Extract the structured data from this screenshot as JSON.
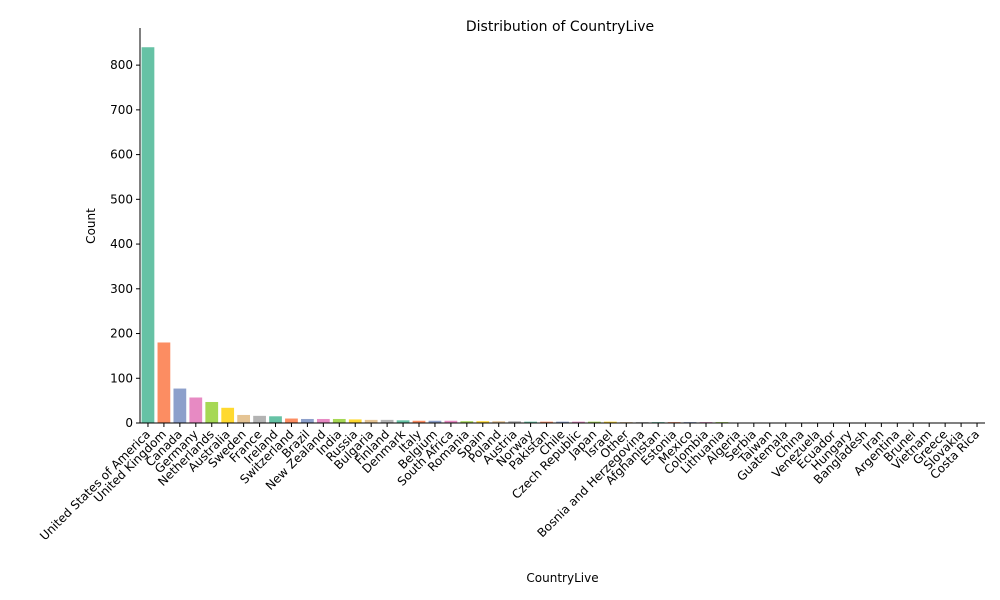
{
  "chart_data": {
    "type": "bar",
    "title": "Distribution of CountryLive",
    "xlabel": "CountryLive",
    "ylabel": "Count",
    "ylim": [
      0,
      883
    ],
    "yticks": [
      0,
      100,
      200,
      300,
      400,
      500,
      600,
      700,
      800
    ],
    "categories": [
      "United States of America",
      "United Kingdom",
      "Canada",
      "Germany",
      "Netherlands",
      "Australia",
      "Sweden",
      "France",
      "Ireland",
      "Switzerland",
      "Brazil",
      "New Zealand",
      "India",
      "Russia",
      "Bulgaria",
      "Finland",
      "Denmark",
      "Italy",
      "Belgium",
      "South Africa",
      "Romania",
      "Spain",
      "Poland",
      "Austria",
      "Norway",
      "Pakistan",
      "Chile",
      "Czech Republic",
      "Japan",
      "Israel",
      "Other",
      "Bosnia and Herzegovina",
      "Afghanistan",
      "Estonia",
      "Mexico",
      "Colombia",
      "Lithuania",
      "Algeria",
      "Serbia",
      "Taiwan",
      "Guatemala",
      "China",
      "Venezuela",
      "Ecuador",
      "Hungary",
      "Bangladesh",
      "Iran",
      "Argentina",
      "Brunei",
      "Vietnam",
      "Greece",
      "Slovakia",
      "Costa Rica"
    ],
    "values": [
      840,
      180,
      77,
      57,
      47,
      34,
      18,
      16,
      15,
      10,
      9,
      9,
      9,
      8,
      7,
      7,
      6,
      5,
      5,
      5,
      4,
      4,
      4,
      4,
      3,
      3,
      3,
      3,
      3,
      3,
      2,
      2,
      2,
      2,
      2,
      2,
      2,
      1,
      1,
      1,
      1,
      1,
      1,
      1,
      1,
      1,
      1,
      1,
      1,
      1,
      1,
      1,
      1
    ],
    "palette": [
      "#66c2a5",
      "#fc8d62",
      "#8da0cb",
      "#e78ac3",
      "#a6d854",
      "#ffd92f",
      "#e5c494",
      "#b3b3b3"
    ],
    "grid": false,
    "legend": "none"
  }
}
